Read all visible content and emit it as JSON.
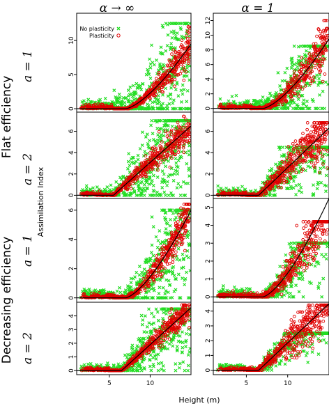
{
  "figure": {
    "col_titles": [
      "α → ∞",
      "α = 1"
    ],
    "row_labels": [
      "a = 1",
      "a = 2",
      "a = 1",
      "a = 2"
    ],
    "group_labels": [
      "Flat efficiency",
      "Decreasing efficiency"
    ],
    "ylabel": "Assimilation Index",
    "xlabel": "Height (m)",
    "legend": {
      "no_plasticity": "No plasticity",
      "plasticity": "Plasticity"
    }
  },
  "colors": {
    "no_plasticity": "#22dd22",
    "plasticity": "#e00000",
    "curve": "#000000",
    "frame": "#000000"
  },
  "chart_data": {
    "type": "scatter",
    "xlim": [
      1,
      15
    ],
    "xticks": [
      5,
      10
    ],
    "grid": false,
    "legend_position": "top-left of first panel",
    "series": [
      {
        "name": "No plasticity"
      },
      {
        "name": "Plasticity"
      }
    ],
    "panels": [
      {
        "row": 0,
        "col": 0,
        "ylim": [
          -0.5,
          14
        ],
        "yticks": [
          0,
          5,
          10
        ],
        "threshold": 7,
        "slope_end": [
          15,
          9.5
        ],
        "shape": "convex",
        "green_spread": 1.0,
        "red_spread": 0.35,
        "green_max": 12.5,
        "red_max": 13.5
      },
      {
        "row": 0,
        "col": 1,
        "ylim": [
          -0.5,
          13
        ],
        "yticks": [
          0,
          2,
          4,
          6,
          8,
          10,
          12
        ],
        "threshold": 7,
        "slope_end": [
          15,
          9.5
        ],
        "shape": "convex",
        "green_spread": 0.9,
        "red_spread": 0.45,
        "green_max": 8.5,
        "red_max": 12
      },
      {
        "row": 1,
        "col": 0,
        "ylim": [
          -0.3,
          7.8
        ],
        "yticks": [
          0,
          2,
          4,
          6
        ],
        "threshold": 5.5,
        "slope_end": [
          15,
          6.5
        ],
        "shape": "linear",
        "green_spread": 0.8,
        "red_spread": 0.3,
        "green_max": 7.0,
        "red_max": 7.5
      },
      {
        "row": 1,
        "col": 1,
        "ylim": [
          -0.3,
          7.8
        ],
        "yticks": [
          0,
          2,
          4,
          6
        ],
        "threshold": 6.5,
        "slope_end": [
          15,
          6.3
        ],
        "shape": "linear",
        "green_spread": 0.7,
        "red_spread": 0.5,
        "green_max": 4.5,
        "red_max": 6.8
      },
      {
        "row": 2,
        "col": 0,
        "ylim": [
          -0.3,
          6.8
        ],
        "yticks": [
          0,
          2,
          4,
          6
        ],
        "threshold": 7,
        "slope_end": [
          15,
          6.0
        ],
        "shape": "convex",
        "green_spread": 0.8,
        "red_spread": 0.3,
        "green_max": 6.0,
        "red_max": 6.4
      },
      {
        "row": 2,
        "col": 1,
        "ylim": [
          -0.3,
          5.5
        ],
        "yticks": [
          0,
          1,
          2,
          3,
          4,
          5
        ],
        "threshold": 7,
        "slope_end": [
          15,
          5.5
        ],
        "shape": "convex",
        "green_spread": 0.6,
        "red_spread": 0.45,
        "green_max": 3.0,
        "red_max": 4.2
      },
      {
        "row": 3,
        "col": 0,
        "ylim": [
          -0.3,
          5.0
        ],
        "yticks": [
          0,
          1,
          2,
          3,
          4
        ],
        "threshold": 6.5,
        "slope_end": [
          15,
          4.6
        ],
        "shape": "linear",
        "green_spread": 0.7,
        "red_spread": 0.25,
        "green_max": 4.5,
        "red_max": 4.8
      },
      {
        "row": 3,
        "col": 1,
        "ylim": [
          -0.3,
          4.6
        ],
        "yticks": [
          0,
          1,
          2,
          3,
          4
        ],
        "threshold": 6.5,
        "slope_end": [
          15,
          4.5
        ],
        "shape": "linear",
        "green_spread": 0.5,
        "red_spread": 0.45,
        "green_max": 2.5,
        "red_max": 4.4
      }
    ]
  }
}
